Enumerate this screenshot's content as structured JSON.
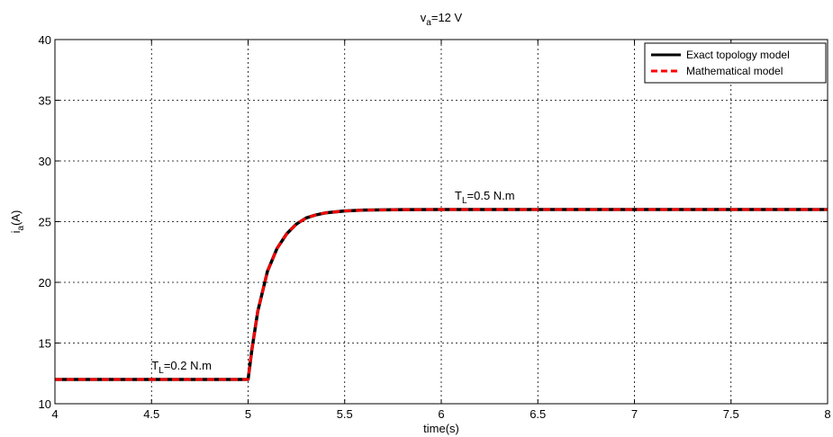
{
  "chart_data": {
    "type": "line",
    "title": "v",
    "title_sub": "a",
    "title_rest": "=12 V",
    "xlabel": "time(s)",
    "ylabel": "i",
    "ylabel_sub": "a",
    "ylabel_rest": "(A)",
    "xlim": [
      4,
      8
    ],
    "ylim": [
      10,
      40
    ],
    "xticks": [
      4,
      4.5,
      5,
      5.5,
      6,
      6.5,
      7,
      7.5,
      8
    ],
    "xtick_labels": [
      "4",
      "4.5",
      "5",
      "5.5",
      "6",
      "6.5",
      "7",
      "7.5",
      "8"
    ],
    "yticks": [
      10,
      15,
      20,
      25,
      30,
      35,
      40
    ],
    "ytick_labels": [
      "10",
      "15",
      "20",
      "25",
      "30",
      "35",
      "40"
    ],
    "grid": true,
    "legend_position": "top-right",
    "series": [
      {
        "name": "Exact topology model",
        "color": "#000000",
        "style": "solid",
        "x": [
          4.0,
          5.0,
          5.02,
          5.05,
          5.1,
          5.15,
          5.2,
          5.25,
          5.3,
          5.35,
          5.4,
          5.5,
          5.6,
          5.8,
          6.0,
          8.0
        ],
        "y": [
          12,
          12,
          14.5,
          17.6,
          20.9,
          22.8,
          24.0,
          24.8,
          25.3,
          25.55,
          25.72,
          25.88,
          25.95,
          25.99,
          26.0,
          26.0
        ]
      },
      {
        "name": "Mathematical model",
        "color": "#ff0000",
        "style": "dashed",
        "x": [
          4.0,
          5.0,
          5.02,
          5.05,
          5.1,
          5.15,
          5.2,
          5.25,
          5.3,
          5.35,
          5.4,
          5.5,
          5.6,
          5.8,
          6.0,
          8.0
        ],
        "y": [
          12,
          12,
          14.5,
          17.6,
          20.9,
          22.8,
          24.0,
          24.8,
          25.3,
          25.55,
          25.72,
          25.88,
          25.95,
          25.99,
          26.0,
          26.0
        ]
      }
    ],
    "annotations": [
      {
        "main": "T",
        "sub": "L",
        "rest": "=0.2 N.m",
        "x": 4.5,
        "y": 12.8
      },
      {
        "main": "T",
        "sub": "L",
        "rest": "=0.5 N.m",
        "x": 6.07,
        "y": 26.8
      }
    ]
  }
}
